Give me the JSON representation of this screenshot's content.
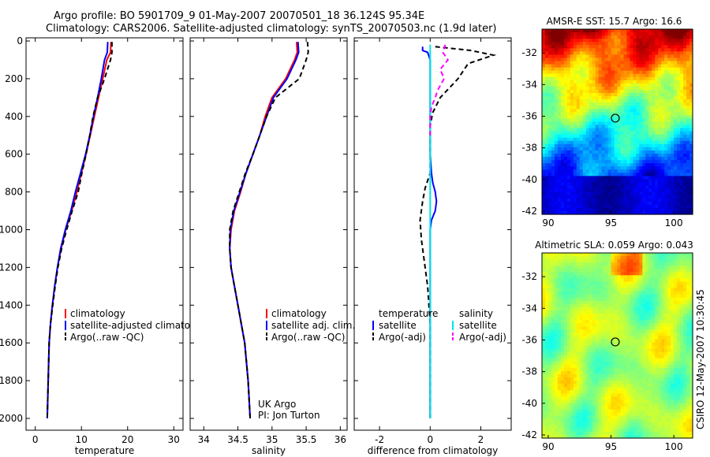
{
  "header": {
    "line1": "Argo profile: BO 5901709_9 01-May-2007 20070501_18 36.124S 95.34E",
    "line2": "Climatology: CARS2006. Satellite-adjusted climatology: synTS_20070503.nc (1.9d later)"
  },
  "side_label": "CSIRO 12-May-2007 10:30:45",
  "colors": {
    "red": "#ff0000",
    "blue": "#0000ff",
    "black": "#000000",
    "cyan": "#00e5e5",
    "magenta": "#ff00ff"
  },
  "chart_data": [
    {
      "id": "temperature",
      "type": "line",
      "xlabel": "temperature",
      "ylabel": "",
      "xlim": [
        -2,
        32
      ],
      "ylim": [
        2080,
        0
      ],
      "xticks": [
        0,
        10,
        20,
        30
      ],
      "yticks": [
        0,
        200,
        400,
        600,
        800,
        1000,
        1200,
        1400,
        1600,
        1800,
        2000
      ],
      "series": [
        {
          "name": "climatology",
          "color": "#ff0000",
          "dash": "",
          "x": [
            16.4,
            16.3,
            15.5,
            14.6,
            13.7,
            12.8,
            11.9,
            11.0,
            10.0,
            9.0,
            7.9,
            6.6,
            5.6,
            4.8,
            4.2,
            3.7,
            3.3,
            3.0,
            2.8,
            2.6
          ],
          "y": [
            5,
            60,
            100,
            200,
            300,
            400,
            500,
            600,
            700,
            800,
            900,
            1000,
            1100,
            1200,
            1300,
            1400,
            1500,
            1600,
            1800,
            2000
          ]
        },
        {
          "name": "satellite-adjusted climatology",
          "color": "#0000ff",
          "dash": "",
          "x": [
            15.7,
            15.6,
            15.0,
            14.3,
            13.5,
            12.6,
            11.8,
            10.9,
            9.8,
            8.7,
            7.7,
            6.5,
            5.5,
            4.8,
            4.2,
            3.7,
            3.3,
            3.0,
            2.8,
            2.6
          ],
          "y": [
            5,
            60,
            100,
            200,
            300,
            400,
            500,
            600,
            700,
            800,
            900,
            1000,
            1100,
            1200,
            1300,
            1400,
            1500,
            1600,
            1800,
            2000
          ]
        },
        {
          "name": "Argo(..raw -QC)",
          "color": "#000000",
          "dash": "6,4",
          "x": [
            16.6,
            16.6,
            16.3,
            15.0,
            13.5,
            12.5,
            11.8,
            11.0,
            10.1,
            9.3,
            8.0,
            6.8,
            5.7,
            4.9,
            4.3,
            3.8,
            3.3,
            3.0,
            2.8,
            2.6
          ],
          "y": [
            5,
            60,
            100,
            200,
            300,
            400,
            500,
            600,
            700,
            800,
            900,
            1000,
            1100,
            1200,
            1300,
            1400,
            1500,
            1600,
            1800,
            2000
          ]
        }
      ],
      "legend": [
        "climatology",
        "satellite-adjusted climatology",
        "Argo(..raw -QC)"
      ]
    },
    {
      "id": "salinity",
      "type": "line",
      "xlabel": "salinity",
      "ylabel": "",
      "xlim": [
        33.8,
        36.1
      ],
      "ylim": [
        2080,
        0
      ],
      "xticks": [
        34,
        34.5,
        35,
        35.5,
        36
      ],
      "series": [
        {
          "name": "climatology",
          "color": "#ff0000",
          "dash": "",
          "x": [
            35.36,
            35.37,
            35.33,
            35.2,
            35.0,
            34.9,
            34.82,
            34.72,
            34.62,
            34.54,
            34.45,
            34.4,
            34.38,
            34.4,
            34.45,
            34.5,
            34.55,
            34.6,
            34.65,
            34.68
          ],
          "y": [
            5,
            60,
            100,
            200,
            300,
            400,
            500,
            600,
            700,
            800,
            900,
            1000,
            1100,
            1200,
            1300,
            1400,
            1500,
            1600,
            1800,
            2000
          ]
        },
        {
          "name": "satellite adj. clim.",
          "color": "#0000ff",
          "dash": "",
          "x": [
            35.38,
            35.39,
            35.35,
            35.22,
            35.02,
            34.92,
            34.82,
            34.72,
            34.62,
            34.53,
            34.44,
            34.39,
            34.38,
            34.4,
            34.45,
            34.5,
            34.55,
            34.6,
            34.65,
            34.68
          ],
          "y": [
            5,
            60,
            100,
            200,
            300,
            400,
            500,
            600,
            700,
            800,
            900,
            1000,
            1100,
            1200,
            1300,
            1400,
            1500,
            1600,
            1800,
            2000
          ]
        },
        {
          "name": "Argo(..raw -QC)",
          "color": "#000000",
          "dash": "6,4",
          "x": [
            35.52,
            35.53,
            35.5,
            35.4,
            35.05,
            34.92,
            34.82,
            34.72,
            34.61,
            34.52,
            34.43,
            34.38,
            34.38,
            34.4,
            34.45,
            34.5,
            34.55,
            34.6,
            34.65,
            34.68
          ],
          "y": [
            5,
            60,
            100,
            200,
            300,
            400,
            500,
            600,
            700,
            800,
            900,
            1000,
            1100,
            1200,
            1300,
            1400,
            1500,
            1600,
            1800,
            2000
          ]
        }
      ],
      "legend": [
        "climatology",
        "satellite adj. clim.",
        "Argo(..raw -QC)"
      ],
      "annotation": [
        "UK Argo",
        "PI: Jon Turton"
      ]
    },
    {
      "id": "difference",
      "type": "line",
      "xlabel": "difference from climatology",
      "ylabel": "",
      "xlim": [
        -3,
        3.2
      ],
      "ylim": [
        2080,
        0
      ],
      "xticks": [
        -2,
        0,
        2
      ],
      "series": [
        {
          "name": "temperature satellite",
          "color": "#0000ff",
          "dash": "",
          "x": [
            -0.3,
            -0.3,
            -0.1,
            0,
            0,
            0,
            0,
            0,
            0,
            0.05,
            0.1,
            0.2,
            0.25,
            0.2,
            0.05,
            0,
            0,
            0,
            0,
            0,
            0,
            0,
            0
          ],
          "y": [
            30,
            50,
            60,
            100,
            200,
            300,
            400,
            500,
            600,
            700,
            750,
            800,
            850,
            900,
            950,
            1000,
            1100,
            1200,
            1400,
            1600,
            1800,
            1900,
            2000
          ]
        },
        {
          "name": "temperature Argo(-adj)",
          "color": "#000000",
          "dash": "6,4",
          "x": [
            0.2,
            1.6,
            2.5,
            1.5,
            1.1,
            0.4,
            0.1,
            0,
            0,
            0,
            -0.2,
            -0.3,
            -0.4,
            -0.35,
            -0.3,
            -0.2,
            -0.1,
            0,
            0,
            0,
            0
          ],
          "y": [
            30,
            50,
            75,
            120,
            200,
            300,
            380,
            450,
            600,
            700,
            780,
            850,
            950,
            1050,
            1100,
            1200,
            1300,
            1500,
            1700,
            1900,
            2000
          ]
        },
        {
          "name": "salinity satellite",
          "color": "#00e5e5",
          "dash": "",
          "x": [
            0,
            0,
            0,
            0,
            0,
            0,
            0,
            0,
            0,
            0,
            0,
            0,
            0,
            0,
            0,
            0,
            0
          ],
          "y": [
            20,
            100,
            200,
            300,
            400,
            500,
            600,
            700,
            800,
            900,
            1000,
            1200,
            1400,
            1600,
            1800,
            1900,
            2000
          ]
        },
        {
          "name": "salinity Argo(-adj)",
          "color": "#ff00ff",
          "dash": "6,4",
          "x": [
            0.6,
            0.5,
            0.7,
            0.4,
            0.55,
            0.3,
            0.2,
            0.05,
            0,
            0,
            0
          ],
          "y": [
            20,
            60,
            100,
            150,
            200,
            260,
            300,
            350,
            400,
            450,
            500
          ]
        }
      ],
      "legend_headers": [
        "temperature",
        "salinity"
      ],
      "legend_left": [
        "satellite",
        "Argo(-adj)"
      ],
      "legend_right": [
        "satellite",
        "Argo(-adj)"
      ]
    },
    {
      "id": "sst_map",
      "type": "heatmap",
      "title": "AMSR-E SST: 15.7 Argo: 16.6",
      "xlim": [
        89.5,
        101.5
      ],
      "ylim": [
        -42.2,
        -30.5
      ],
      "xticks": [
        90,
        95,
        100
      ],
      "yticks": [
        -32,
        -34,
        -36,
        -38,
        -40,
        -42
      ],
      "marker": {
        "lon": 95.34,
        "lat": -36.124
      }
    },
    {
      "id": "sla_map",
      "type": "heatmap",
      "title": "Altimetric SLA: 0.059 Argo: 0.043",
      "xlim": [
        89.5,
        101.5
      ],
      "ylim": [
        -42.2,
        -30.5
      ],
      "xticks": [
        90,
        95,
        100
      ],
      "yticks": [
        -32,
        -34,
        -36,
        -38,
        -40,
        -42
      ],
      "marker": {
        "lon": 95.34,
        "lat": -36.124
      }
    }
  ]
}
